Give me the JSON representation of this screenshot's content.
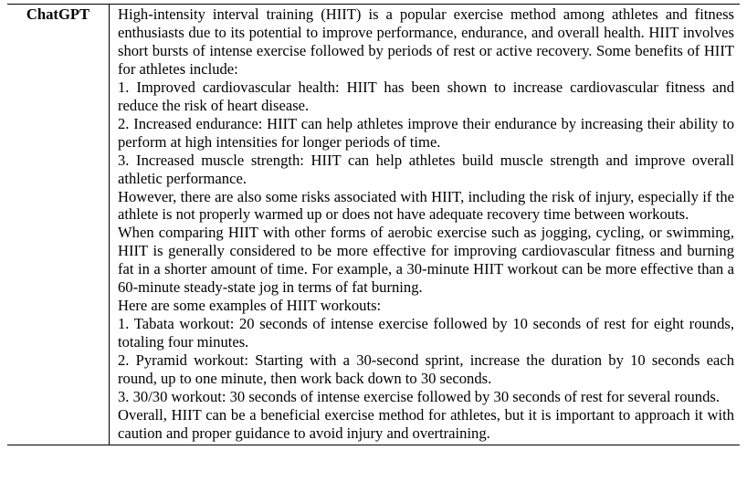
{
  "speaker": "ChatGPT",
  "paragraphs": [
    "High-intensity interval training (HIIT) is a popular exercise method among athletes and fitness enthusiasts due to its potential to improve performance, endurance, and overall health. HIIT involves short bursts of intense exercise followed by periods of rest or active recovery. Some benefits of HIIT for athletes include:",
    "1. Improved cardiovascular health: HIIT has been shown to increase cardiovascular fitness and reduce the risk of heart disease.",
    "2. Increased endurance: HIIT can help athletes improve their endurance by increasing their ability to perform at high intensities for longer periods of time.",
    "3. Increased muscle strength: HIIT can help athletes build muscle strength and improve overall athletic performance.",
    "However, there are also some risks associated with HIIT, including the risk of injury, especially if the athlete is not properly warmed up or does not have adequate recovery time between workouts.",
    "When comparing HIIT with other forms of aerobic exercise such as jogging, cycling, or swimming, HIIT is generally considered to be more effective for improving cardiovascular fitness and burning fat in a shorter amount of time. For example, a 30-minute HIIT workout can be more effective than a 60-minute steady-state jog in terms of fat burning.",
    "Here are some examples of HIIT workouts:",
    "1. Tabata workout: 20 seconds of intense exercise followed by 10 seconds of rest for eight rounds, totaling four minutes.",
    "2. Pyramid workout: Starting with a 30-second sprint, increase the duration by 10 seconds each round, up to one minute, then work back down to 30 seconds.",
    "3. 30/30 workout: 30 seconds of intense exercise followed by 30 seconds of rest for several rounds.",
    "Overall, HIIT can be a beneficial exercise method for athletes, but it is important to approach it with caution and proper guidance to avoid injury and overtraining."
  ]
}
